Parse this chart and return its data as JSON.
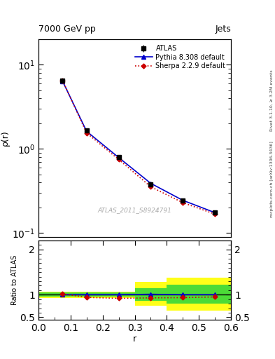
{
  "title_left": "7000 GeV pp",
  "title_right": "Jets",
  "ylabel_main": "ρ(r)",
  "ylabel_ratio": "Ratio to ATLAS",
  "xlabel": "r",
  "watermark": "ATLAS_2011_S8924791",
  "rivet_label": "Rivet 3.1.10, ≥ 3.2M events",
  "mcplots_label": "mcplots.cern.ch [arXiv:1306.3436]",
  "atlas_x": [
    0.075,
    0.15,
    0.25,
    0.35,
    0.45,
    0.55
  ],
  "atlas_y": [
    6.5,
    1.65,
    0.8,
    0.38,
    0.245,
    0.175
  ],
  "atlas_yerr": [
    0.15,
    0.04,
    0.02,
    0.01,
    0.008,
    0.007
  ],
  "pythia_x": [
    0.075,
    0.15,
    0.25,
    0.35,
    0.45,
    0.55
  ],
  "pythia_y": [
    6.4,
    1.62,
    0.79,
    0.39,
    0.245,
    0.175
  ],
  "sherpa_x": [
    0.075,
    0.15,
    0.25,
    0.35,
    0.45,
    0.55
  ],
  "sherpa_y": [
    6.5,
    1.55,
    0.75,
    0.355,
    0.23,
    0.168
  ],
  "ratio_pythia_x": [
    0.075,
    0.15,
    0.25,
    0.35,
    0.45,
    0.55
  ],
  "ratio_pythia_y": [
    1.0,
    1.0,
    1.0,
    1.01,
    1.0,
    1.0
  ],
  "ratio_sherpa_x": [
    0.075,
    0.15,
    0.25,
    0.35,
    0.45,
    0.55
  ],
  "ratio_sherpa_y": [
    1.02,
    0.94,
    0.92,
    0.93,
    0.935,
    0.95
  ],
  "band_yellow_edges": [
    0.0,
    0.1,
    0.2,
    0.3,
    0.4,
    0.5,
    0.6
  ],
  "band_yellow_lo": [
    0.93,
    0.93,
    0.93,
    0.75,
    0.65,
    0.65
  ],
  "band_yellow_hi": [
    1.07,
    1.07,
    1.07,
    1.28,
    1.38,
    1.38
  ],
  "band_green_edges": [
    0.0,
    0.1,
    0.2,
    0.3,
    0.4,
    0.5,
    0.6
  ],
  "band_green_lo": [
    0.95,
    0.95,
    0.95,
    0.86,
    0.8,
    0.8
  ],
  "band_green_hi": [
    1.05,
    1.05,
    1.05,
    1.15,
    1.22,
    1.22
  ],
  "color_atlas": "#000000",
  "color_pythia": "#0000cc",
  "color_sherpa": "#cc0000",
  "color_yellow": "#ffff00",
  "color_green": "#00cc44",
  "xlim": [
    0.0,
    0.6
  ],
  "ylim_main": [
    0.09,
    20.0
  ],
  "ylim_ratio": [
    0.45,
    2.2
  ]
}
